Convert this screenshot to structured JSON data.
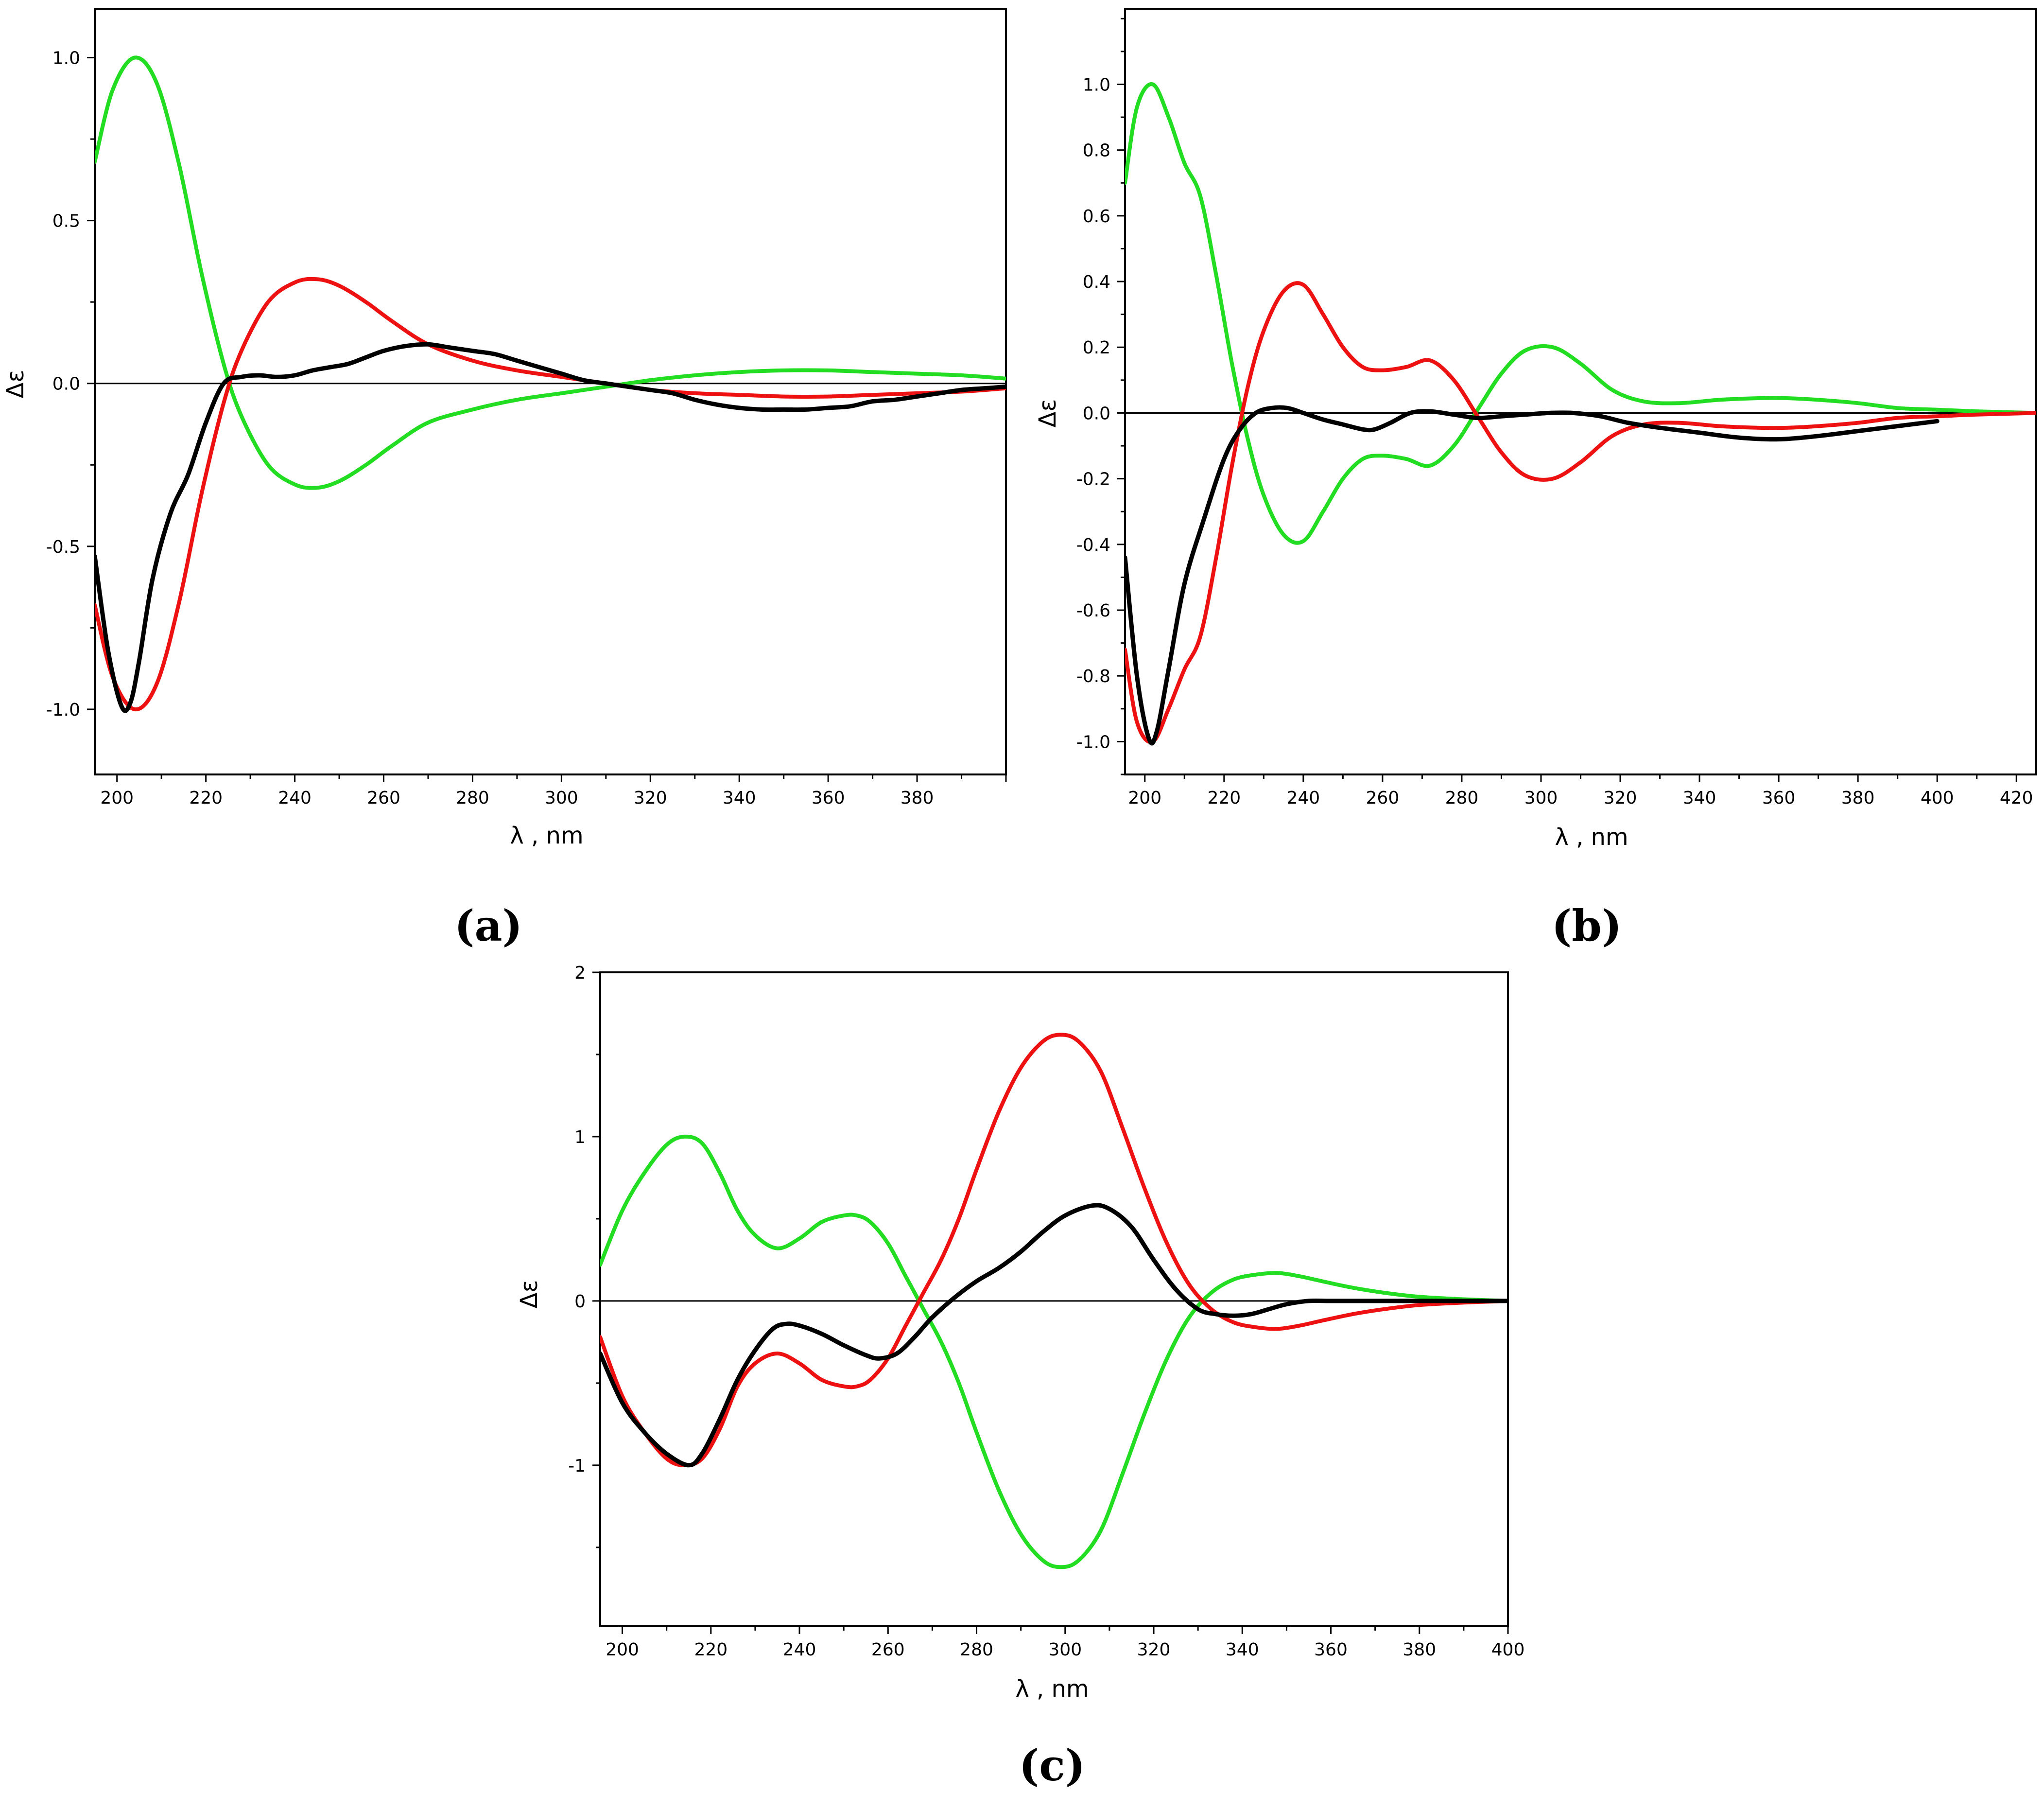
{
  "colors": {
    "red": "#ee1111",
    "green": "#22dd22",
    "black": "#000000",
    "axis": "#000000"
  },
  "chart_data": [
    {
      "id": "a",
      "type": "line",
      "panel_label": "(a)",
      "xlabel": "λ  ,  nm",
      "ylabel": "Δε",
      "xlim": [
        195,
        400
      ],
      "ylim": [
        -1.2,
        1.15
      ],
      "xticks": [
        200,
        220,
        240,
        260,
        280,
        300,
        320,
        340,
        360,
        380
      ],
      "xtick_labels": [
        "200",
        "220",
        "240",
        "260",
        "280",
        "300",
        "320",
        "340",
        "360",
        "380"
      ],
      "yticks": [
        1.0,
        0.5,
        0.0,
        -0.5,
        -1.0
      ],
      "ytick_labels": [
        "1.0",
        "0.5",
        "0.0",
        "-0.5",
        "-1.0"
      ],
      "grid": false,
      "series": [
        {
          "color": "green",
          "x": [
            195,
            199,
            204,
            209,
            214,
            219,
            224,
            228,
            234,
            240,
            245,
            250,
            256,
            262,
            270,
            280,
            290,
            300,
            310,
            320,
            330,
            340,
            350,
            360,
            370,
            380,
            390,
            400
          ],
          "y": [
            0.68,
            0.9,
            1.0,
            0.92,
            0.67,
            0.34,
            0.06,
            -0.1,
            -0.25,
            -0.31,
            -0.32,
            -0.3,
            -0.25,
            -0.19,
            -0.12,
            -0.08,
            -0.05,
            -0.03,
            -0.01,
            0.01,
            0.025,
            0.035,
            0.04,
            0.04,
            0.035,
            0.03,
            0.025,
            0.015
          ]
        },
        {
          "color": "red",
          "x": [
            195,
            199,
            204,
            209,
            214,
            219,
            224,
            228,
            234,
            240,
            245,
            250,
            256,
            262,
            270,
            280,
            290,
            300,
            310,
            320,
            330,
            340,
            350,
            360,
            370,
            380,
            390,
            400
          ],
          "y": [
            -0.68,
            -0.9,
            -1.0,
            -0.92,
            -0.67,
            -0.34,
            -0.06,
            0.1,
            0.25,
            0.31,
            0.32,
            0.3,
            0.25,
            0.19,
            0.12,
            0.07,
            0.04,
            0.02,
            0.0,
            -0.02,
            -0.03,
            -0.035,
            -0.04,
            -0.04,
            -0.035,
            -0.03,
            -0.025,
            -0.015
          ]
        },
        {
          "color": "black",
          "x": [
            195,
            198,
            201,
            203,
            205,
            208,
            212,
            216,
            220,
            224,
            228,
            232,
            236,
            240,
            244,
            248,
            252,
            256,
            260,
            265,
            270,
            275,
            280,
            285,
            290,
            295,
            300,
            305,
            310,
            315,
            320,
            325,
            330,
            335,
            340,
            345,
            350,
            355,
            360,
            365,
            370,
            375,
            380,
            385,
            390,
            395,
            400
          ],
          "y": [
            -0.53,
            -0.82,
            -0.99,
            -0.98,
            -0.85,
            -0.6,
            -0.4,
            -0.28,
            -0.12,
            0.0,
            0.02,
            0.025,
            0.02,
            0.025,
            0.04,
            0.05,
            0.06,
            0.08,
            0.1,
            0.115,
            0.12,
            0.11,
            0.1,
            0.09,
            0.07,
            0.05,
            0.03,
            0.01,
            0.0,
            -0.01,
            -0.02,
            -0.03,
            -0.05,
            -0.065,
            -0.075,
            -0.08,
            -0.08,
            -0.08,
            -0.075,
            -0.07,
            -0.055,
            -0.05,
            -0.04,
            -0.03,
            -0.02,
            -0.015,
            -0.01
          ]
        }
      ]
    },
    {
      "id": "b",
      "type": "line",
      "panel_label": "(b)",
      "xlabel": "λ  ,  nm",
      "ylabel": "Δε",
      "xlim": [
        195,
        425
      ],
      "ylim": [
        -1.1,
        1.23
      ],
      "xticks": [
        200,
        220,
        240,
        260,
        280,
        300,
        320,
        340,
        360,
        380,
        400,
        420
      ],
      "xtick_labels": [
        "200",
        "220",
        "240",
        "260",
        "280",
        "300",
        "320",
        "340",
        "360",
        "380",
        "400",
        "420"
      ],
      "yticks": [
        1.0,
        0.8,
        0.6,
        0.4,
        0.2,
        0.0,
        -0.2,
        -0.4,
        -0.6,
        -0.8,
        -1.0
      ],
      "ytick_labels": [
        "1.0",
        "0.8",
        "0.6",
        "0.4",
        "0.2",
        "0.0",
        "-0.2",
        "-0.4",
        "-0.6",
        "-0.8",
        "-1.0"
      ],
      "grid": false,
      "series": [
        {
          "color": "green",
          "x": [
            195,
            198,
            202,
            206,
            210,
            214,
            218,
            222,
            226,
            230,
            235,
            240,
            245,
            250,
            255,
            260,
            266,
            272,
            278,
            284,
            290,
            296,
            303,
            310,
            318,
            326,
            335,
            345,
            355,
            362,
            370,
            380,
            390,
            400,
            410,
            425
          ],
          "y": [
            0.7,
            0.93,
            1.0,
            0.9,
            0.76,
            0.66,
            0.42,
            0.15,
            -0.08,
            -0.25,
            -0.37,
            -0.39,
            -0.3,
            -0.2,
            -0.14,
            -0.13,
            -0.14,
            -0.16,
            -0.1,
            0.01,
            0.12,
            0.19,
            0.2,
            0.15,
            0.07,
            0.035,
            0.03,
            0.04,
            0.045,
            0.045,
            0.04,
            0.03,
            0.015,
            0.01,
            0.005,
            0.0
          ]
        },
        {
          "color": "red",
          "x": [
            195,
            198,
            202,
            206,
            210,
            214,
            218,
            222,
            226,
            230,
            235,
            240,
            245,
            250,
            255,
            260,
            266,
            272,
            278,
            284,
            290,
            296,
            303,
            310,
            318,
            326,
            335,
            345,
            355,
            362,
            370,
            380,
            390,
            400,
            410,
            425
          ],
          "y": [
            -0.72,
            -0.94,
            -1.0,
            -0.9,
            -0.78,
            -0.68,
            -0.44,
            -0.16,
            0.08,
            0.25,
            0.37,
            0.39,
            0.3,
            0.2,
            0.14,
            0.13,
            0.14,
            0.16,
            0.1,
            -0.01,
            -0.12,
            -0.19,
            -0.2,
            -0.15,
            -0.07,
            -0.035,
            -0.03,
            -0.04,
            -0.045,
            -0.045,
            -0.04,
            -0.03,
            -0.015,
            -0.01,
            -0.005,
            0.0
          ]
        },
        {
          "color": "black",
          "x": [
            195,
            198,
            201,
            203,
            206,
            210,
            215,
            220,
            224,
            228,
            232,
            236,
            240,
            245,
            250,
            255,
            258,
            262,
            267,
            272,
            278,
            284,
            290,
            296,
            302,
            308,
            315,
            322,
            330,
            340,
            350,
            360,
            370,
            380,
            390,
            400
          ],
          "y": [
            -0.44,
            -0.8,
            -0.99,
            -0.97,
            -0.78,
            -0.52,
            -0.32,
            -0.14,
            -0.05,
            0.0,
            0.015,
            0.015,
            0.0,
            -0.02,
            -0.035,
            -0.05,
            -0.05,
            -0.03,
            0.0,
            0.005,
            -0.005,
            -0.015,
            -0.01,
            -0.005,
            0.0,
            0.0,
            -0.01,
            -0.03,
            -0.045,
            -0.06,
            -0.075,
            -0.08,
            -0.07,
            -0.055,
            -0.04,
            -0.025
          ]
        }
      ]
    },
    {
      "id": "c",
      "type": "line",
      "panel_label": "(c)",
      "xlabel": "λ  ,  nm",
      "ylabel": "Δε",
      "xlim": [
        195,
        400
      ],
      "ylim": [
        -1.98,
        2.0
      ],
      "xticks": [
        200,
        220,
        240,
        260,
        280,
        300,
        320,
        340,
        360,
        380,
        400
      ],
      "xtick_labels": [
        "200",
        "220",
        "240",
        "260",
        "280",
        "300",
        "320",
        "340",
        "360",
        "380",
        "400"
      ],
      "yticks": [
        2,
        1,
        0,
        -1
      ],
      "ytick_labels": [
        "2",
        "1",
        "0",
        "-1"
      ],
      "grid": false,
      "series": [
        {
          "color": "green",
          "x": [
            195,
            200,
            205,
            210,
            214,
            218,
            222,
            226,
            230,
            235,
            240,
            245,
            250,
            253,
            256,
            260,
            264,
            268,
            272,
            276,
            280,
            285,
            290,
            295,
            299,
            303,
            308,
            313,
            318,
            323,
            328,
            333,
            338,
            343,
            348,
            353,
            358,
            365,
            372,
            380,
            390,
            400
          ],
          "y": [
            0.22,
            0.55,
            0.78,
            0.95,
            1.0,
            0.96,
            0.78,
            0.55,
            0.4,
            0.32,
            0.38,
            0.48,
            0.52,
            0.52,
            0.48,
            0.35,
            0.15,
            -0.05,
            -0.25,
            -0.5,
            -0.8,
            -1.15,
            -1.42,
            -1.58,
            -1.62,
            -1.58,
            -1.4,
            -1.05,
            -0.68,
            -0.35,
            -0.1,
            0.05,
            0.13,
            0.16,
            0.17,
            0.15,
            0.12,
            0.08,
            0.05,
            0.025,
            0.01,
            0.0
          ]
        },
        {
          "color": "red",
          "x": [
            195,
            200,
            205,
            210,
            214,
            218,
            222,
            226,
            230,
            235,
            240,
            245,
            250,
            253,
            256,
            260,
            264,
            268,
            272,
            276,
            280,
            285,
            290,
            295,
            299,
            303,
            308,
            313,
            318,
            323,
            328,
            333,
            338,
            343,
            348,
            353,
            358,
            365,
            372,
            380,
            390,
            400
          ],
          "y": [
            -0.22,
            -0.58,
            -0.8,
            -0.96,
            -1.0,
            -0.96,
            -0.78,
            -0.52,
            -0.38,
            -0.32,
            -0.38,
            -0.48,
            -0.52,
            -0.52,
            -0.48,
            -0.35,
            -0.15,
            0.05,
            0.25,
            0.5,
            0.8,
            1.15,
            1.42,
            1.58,
            1.62,
            1.58,
            1.4,
            1.05,
            0.68,
            0.35,
            0.1,
            -0.05,
            -0.13,
            -0.16,
            -0.17,
            -0.15,
            -0.12,
            -0.08,
            -0.05,
            -0.025,
            -0.01,
            0.0
          ]
        },
        {
          "color": "black",
          "x": [
            195,
            200,
            205,
            210,
            215,
            218,
            222,
            226,
            230,
            234,
            237,
            240,
            245,
            250,
            255,
            258,
            262,
            266,
            270,
            275,
            280,
            285,
            290,
            295,
            300,
            306,
            310,
            315,
            320,
            325,
            330,
            334,
            338,
            342,
            346,
            350,
            355,
            360,
            370,
            380,
            390,
            400
          ],
          "y": [
            -0.32,
            -0.62,
            -0.8,
            -0.93,
            -1.0,
            -0.93,
            -0.72,
            -0.48,
            -0.3,
            -0.17,
            -0.14,
            -0.15,
            -0.2,
            -0.27,
            -0.33,
            -0.35,
            -0.32,
            -0.22,
            -0.1,
            0.02,
            0.12,
            0.2,
            0.3,
            0.42,
            0.52,
            0.58,
            0.56,
            0.45,
            0.25,
            0.07,
            -0.05,
            -0.08,
            -0.09,
            -0.08,
            -0.05,
            -0.02,
            0.0,
            0.0,
            0.0,
            0.0,
            0.0,
            0.0
          ]
        }
      ]
    }
  ]
}
